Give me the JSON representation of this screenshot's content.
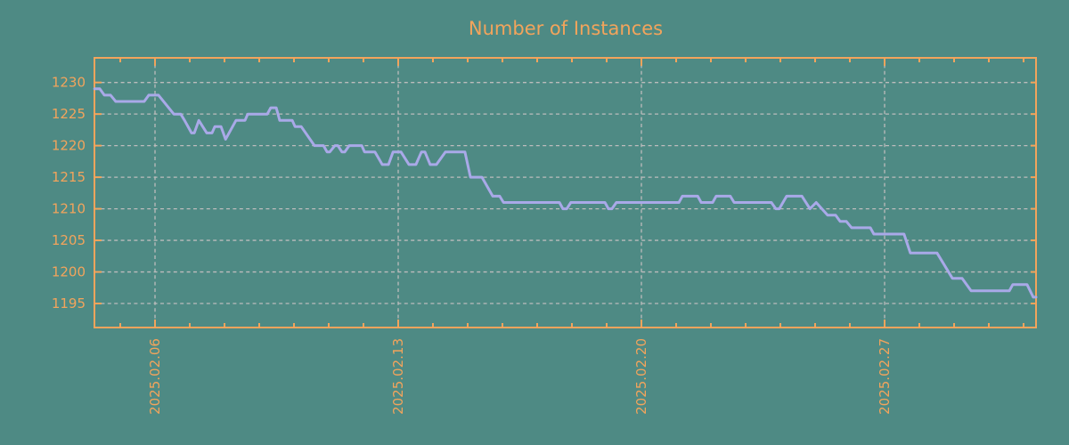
{
  "title": "Number of Instances",
  "colors": {
    "background": "#4E8A84",
    "accent_orange": "#F2A45C",
    "line": "#A9A9E8",
    "grid": "#BCBCBC"
  },
  "chart_data": {
    "type": "line",
    "title": "Number of Instances",
    "xlabel": "",
    "ylabel": "",
    "legend": "none",
    "grid": "dashed major gridlines, both axes",
    "x_axis": {
      "unit": "date (days, February 2025; 29-31 = Mar 1-3)",
      "xlim_days": [
        4.256,
        31.359
      ],
      "major_tick_days": [
        6,
        13,
        20,
        27
      ],
      "major_tick_labels": [
        "2025.02.06",
        "2025.02.13",
        "2025.02.20",
        "2025.02.27"
      ],
      "minor_tick_interval_days": 1
    },
    "y_axis": {
      "ylim": [
        1191.2,
        1233.9
      ],
      "ticks": [
        1195,
        1200,
        1205,
        1210,
        1215,
        1220,
        1225,
        1230
      ]
    },
    "series": [
      {
        "name": "instances",
        "points": [
          [
            4.26,
            1229
          ],
          [
            4.41,
            1229
          ],
          [
            4.54,
            1228
          ],
          [
            4.72,
            1228
          ],
          [
            4.87,
            1227
          ],
          [
            5.69,
            1227
          ],
          [
            5.82,
            1228
          ],
          [
            6.1,
            1228
          ],
          [
            6.54,
            1225
          ],
          [
            6.74,
            1225
          ],
          [
            6.85,
            1224
          ],
          [
            7.05,
            1222
          ],
          [
            7.13,
            1222
          ],
          [
            7.26,
            1224
          ],
          [
            7.49,
            1222
          ],
          [
            7.64,
            1222
          ],
          [
            7.72,
            1223
          ],
          [
            7.9,
            1223
          ],
          [
            8.03,
            1221
          ],
          [
            8.33,
            1224
          ],
          [
            8.59,
            1224
          ],
          [
            8.67,
            1225
          ],
          [
            9.23,
            1225
          ],
          [
            9.33,
            1226
          ],
          [
            9.49,
            1226
          ],
          [
            9.59,
            1224
          ],
          [
            9.95,
            1224
          ],
          [
            10.03,
            1223
          ],
          [
            10.21,
            1223
          ],
          [
            10.59,
            1220
          ],
          [
            10.85,
            1220
          ],
          [
            10.95,
            1219
          ],
          [
            11.03,
            1219
          ],
          [
            11.18,
            1220
          ],
          [
            11.26,
            1220
          ],
          [
            11.38,
            1219
          ],
          [
            11.46,
            1219
          ],
          [
            11.59,
            1220
          ],
          [
            11.95,
            1220
          ],
          [
            12.03,
            1219
          ],
          [
            12.33,
            1219
          ],
          [
            12.54,
            1217
          ],
          [
            12.72,
            1217
          ],
          [
            12.85,
            1219
          ],
          [
            13.08,
            1219
          ],
          [
            13.31,
            1217
          ],
          [
            13.51,
            1217
          ],
          [
            13.67,
            1219
          ],
          [
            13.77,
            1219
          ],
          [
            13.92,
            1217
          ],
          [
            14.1,
            1217
          ],
          [
            14.36,
            1219
          ],
          [
            14.92,
            1219
          ],
          [
            15.08,
            1215
          ],
          [
            15.41,
            1215
          ],
          [
            15.72,
            1212
          ],
          [
            15.92,
            1212
          ],
          [
            16.03,
            1211
          ],
          [
            17.64,
            1211
          ],
          [
            17.74,
            1210
          ],
          [
            17.85,
            1210
          ],
          [
            17.97,
            1211
          ],
          [
            18.95,
            1211
          ],
          [
            19.05,
            1210
          ],
          [
            19.15,
            1210
          ],
          [
            19.28,
            1211
          ],
          [
            21.08,
            1211
          ],
          [
            21.18,
            1212
          ],
          [
            21.62,
            1212
          ],
          [
            21.72,
            1211
          ],
          [
            22.05,
            1211
          ],
          [
            22.15,
            1212
          ],
          [
            22.56,
            1212
          ],
          [
            22.67,
            1211
          ],
          [
            23.74,
            1211
          ],
          [
            23.87,
            1210
          ],
          [
            23.97,
            1210
          ],
          [
            24.18,
            1212
          ],
          [
            24.62,
            1212
          ],
          [
            24.85,
            1210
          ],
          [
            25.03,
            1211
          ],
          [
            25.36,
            1209
          ],
          [
            25.59,
            1209
          ],
          [
            25.72,
            1208
          ],
          [
            25.9,
            1208
          ],
          [
            26.05,
            1207
          ],
          [
            26.59,
            1207
          ],
          [
            26.69,
            1206
          ],
          [
            27.56,
            1206
          ],
          [
            27.74,
            1203
          ],
          [
            28.51,
            1203
          ],
          [
            28.95,
            1199
          ],
          [
            29.23,
            1199
          ],
          [
            29.49,
            1197
          ],
          [
            30.59,
            1197
          ],
          [
            30.69,
            1198
          ],
          [
            31.1,
            1198
          ],
          [
            31.28,
            1196
          ],
          [
            31.36,
            1196
          ]
        ]
      }
    ]
  }
}
